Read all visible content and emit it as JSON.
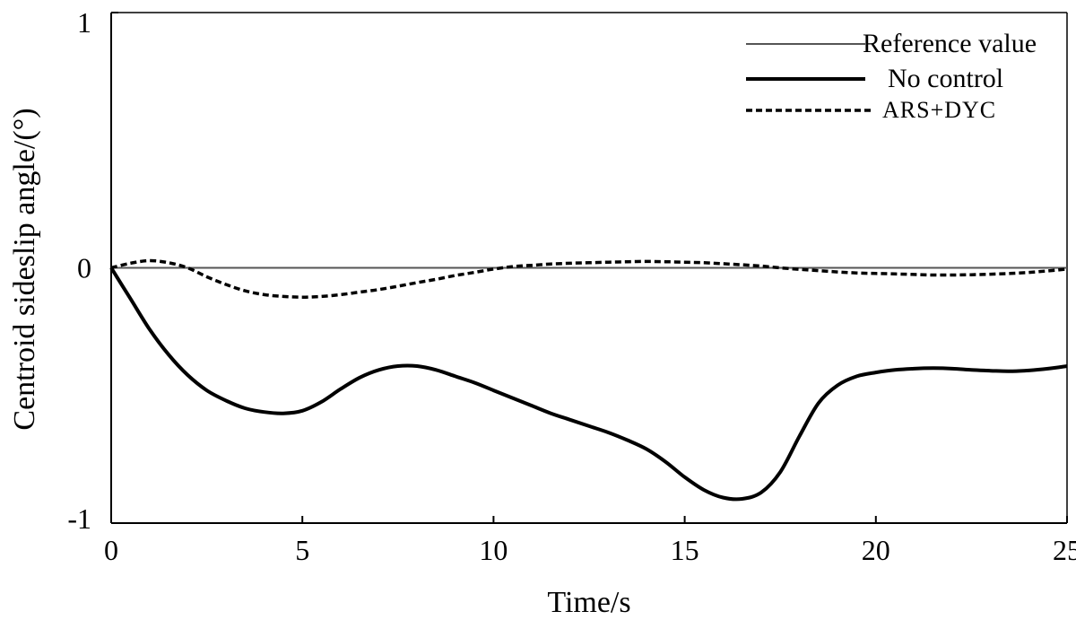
{
  "chart_data": {
    "type": "line",
    "title": "",
    "xlabel": "Time/s",
    "ylabel": "Centroid sideslip angle/(°)",
    "xlim": [
      0,
      25
    ],
    "ylim": [
      -1,
      1
    ],
    "xticks": [
      "0",
      "5",
      "10",
      "15",
      "20",
      "25"
    ],
    "yticks": [
      "-1",
      "0",
      "1"
    ],
    "grid": false,
    "legend_position": "top-right",
    "x": [
      0,
      0.5,
      1,
      1.5,
      2,
      2.5,
      3,
      3.5,
      4,
      4.5,
      5,
      5.5,
      6,
      6.5,
      7,
      7.5,
      8,
      8.5,
      9,
      9.5,
      10,
      10.5,
      11,
      11.5,
      12,
      12.5,
      13,
      13.5,
      14,
      14.5,
      15,
      15.5,
      16,
      16.5,
      17,
      17.5,
      18,
      18.5,
      19,
      19.5,
      20,
      20.5,
      21,
      21.5,
      22,
      22.5,
      23,
      23.5,
      24,
      24.5,
      25
    ],
    "series": [
      {
        "name": "Reference value",
        "style": "thin-solid",
        "color": "#555555",
        "values": [
          0,
          0,
          0,
          0,
          0,
          0,
          0,
          0,
          0,
          0,
          0,
          0,
          0,
          0,
          0,
          0,
          0,
          0,
          0,
          0,
          0,
          0,
          0,
          0,
          0,
          0,
          0,
          0,
          0,
          0,
          0,
          0,
          0,
          0,
          0,
          0,
          0,
          0,
          0,
          0,
          0,
          0,
          0,
          0,
          0,
          0,
          0,
          0,
          0,
          0,
          0
        ]
      },
      {
        "name": "No control",
        "style": "thick-solid",
        "color": "#000000",
        "values": [
          0,
          -0.12,
          -0.24,
          -0.34,
          -0.42,
          -0.48,
          -0.52,
          -0.55,
          -0.565,
          -0.57,
          -0.56,
          -0.525,
          -0.475,
          -0.43,
          -0.4,
          -0.385,
          -0.385,
          -0.4,
          -0.425,
          -0.45,
          -0.48,
          -0.51,
          -0.54,
          -0.57,
          -0.595,
          -0.62,
          -0.645,
          -0.675,
          -0.71,
          -0.76,
          -0.82,
          -0.87,
          -0.9,
          -0.905,
          -0.88,
          -0.8,
          -0.66,
          -0.53,
          -0.46,
          -0.425,
          -0.41,
          -0.4,
          -0.395,
          -0.393,
          -0.395,
          -0.4,
          -0.403,
          -0.405,
          -0.402,
          -0.395,
          -0.385
        ]
      },
      {
        "name": "ARS+DYC",
        "style": "dashed",
        "color": "#000000",
        "values": [
          0,
          0.018,
          0.028,
          0.02,
          0.0,
          -0.035,
          -0.065,
          -0.09,
          -0.105,
          -0.112,
          -0.115,
          -0.112,
          -0.105,
          -0.095,
          -0.085,
          -0.072,
          -0.058,
          -0.045,
          -0.03,
          -0.018,
          -0.005,
          0.005,
          0.01,
          0.015,
          0.018,
          0.02,
          0.022,
          0.024,
          0.025,
          0.024,
          0.022,
          0.02,
          0.016,
          0.012,
          0.007,
          0.0,
          -0.006,
          -0.011,
          -0.016,
          -0.02,
          -0.022,
          -0.024,
          -0.026,
          -0.028,
          -0.028,
          -0.027,
          -0.025,
          -0.022,
          -0.018,
          -0.012,
          -0.005
        ]
      }
    ]
  }
}
